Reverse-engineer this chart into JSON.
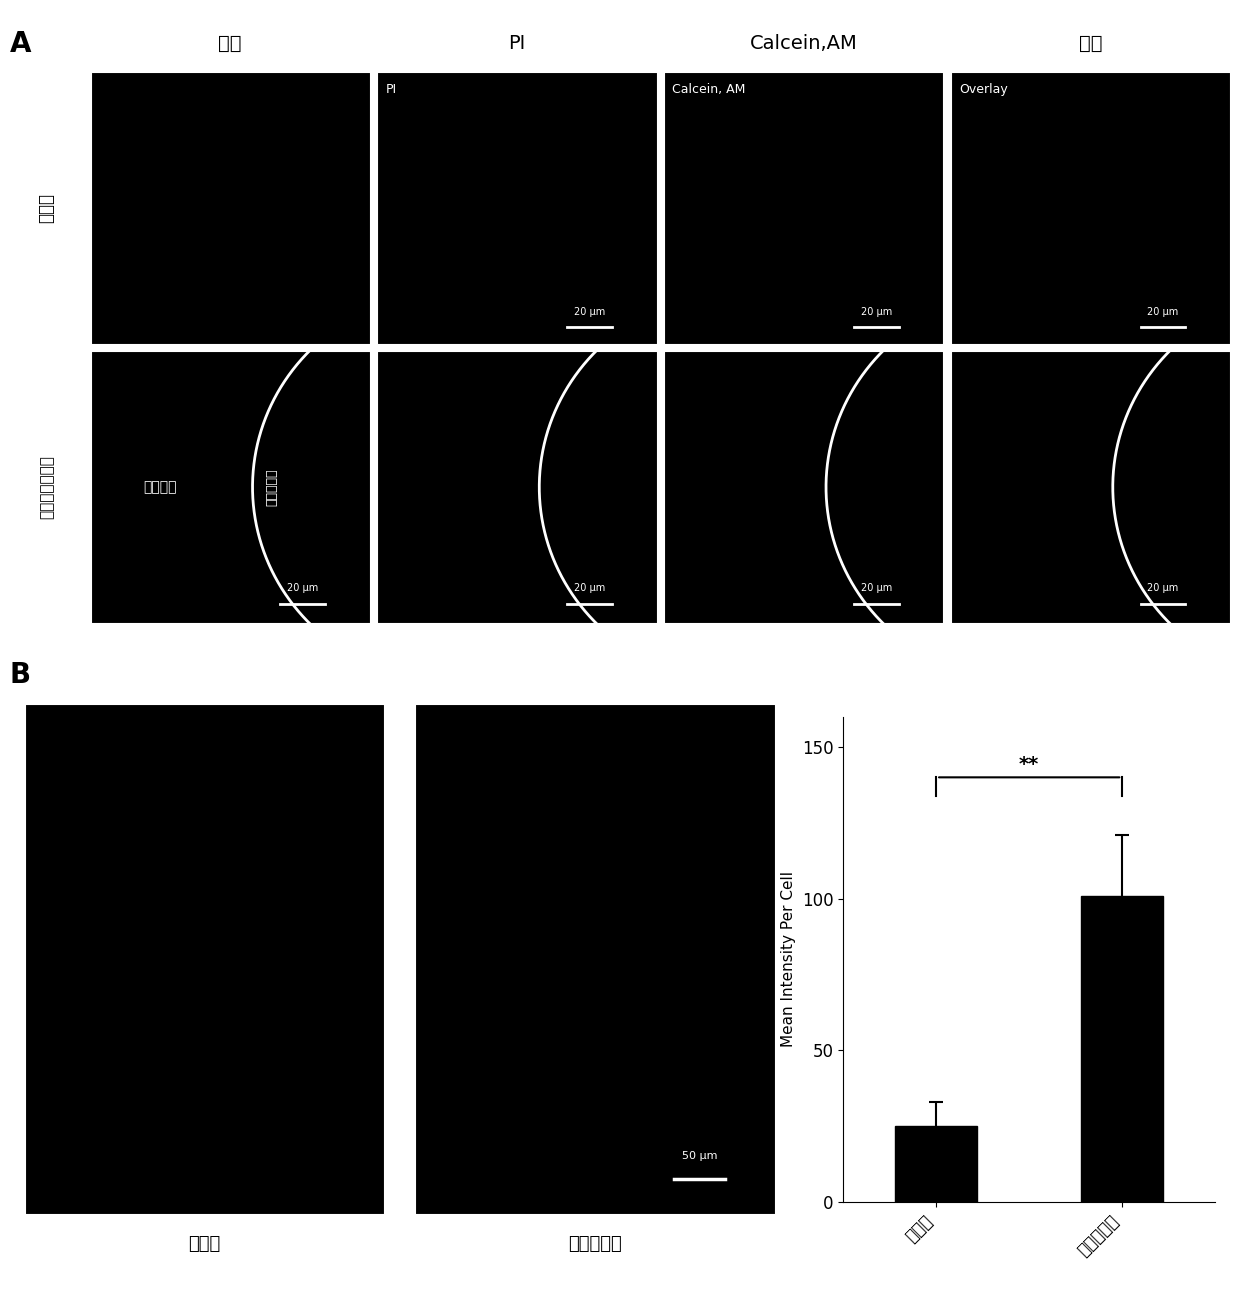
{
  "panel_A_label": "A",
  "panel_B_label": "B",
  "col_labels": [
    "明场",
    "PI",
    "Calcein,AM",
    "重叠"
  ],
  "row_labels_A": [
    "对照组",
    "金纳米簇实验组"
  ],
  "img_labels_row1": [
    "",
    "PI",
    "Calcein, AM",
    "Overlay"
  ],
  "img_labels_row2_first": [
    "照射区域",
    "非照射区域"
  ],
  "scale_bar_labels_row1": [
    "",
    "20 μm",
    "20 μm",
    "20 μm"
  ],
  "scale_bar_labels_row2": [
    "20 μm",
    "20 μm",
    "20 μm",
    "20 μm"
  ],
  "B_img_labels": [
    "对照组",
    "金纳米簇组"
  ],
  "B_scale_bar": "50 μm",
  "bar_values": [
    25,
    101
  ],
  "bar_errors": [
    8,
    20
  ],
  "bar_categories": [
    "对照组",
    "金纳米簇组"
  ],
  "ylabel": "Mean Intensity Per Cell",
  "ylim": [
    0,
    160
  ],
  "yticks": [
    0,
    50,
    100,
    150
  ],
  "significance": "**",
  "bar_color": "#000000",
  "bg_color": "#000000",
  "white": "#ffffff"
}
